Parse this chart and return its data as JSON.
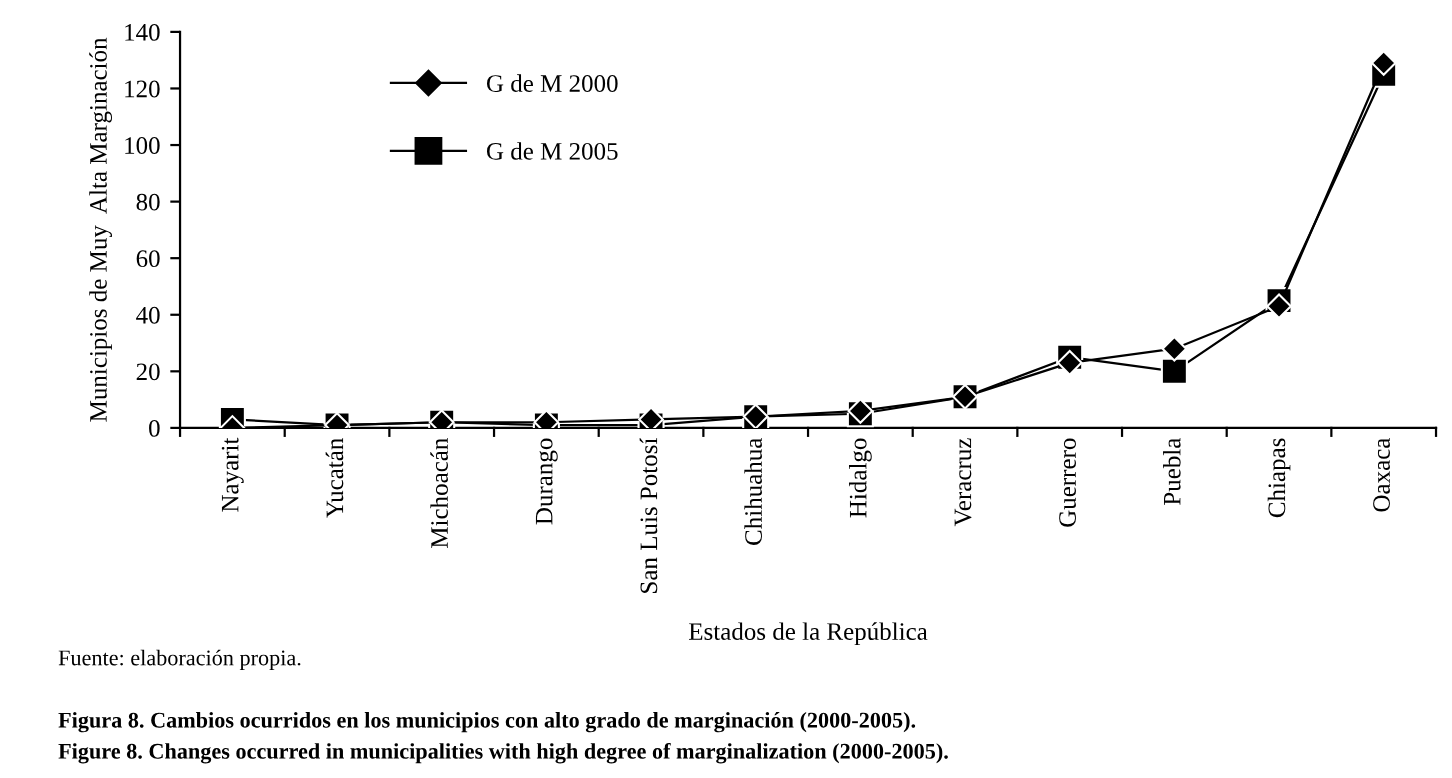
{
  "chart_data": {
    "type": "line",
    "xlabel": "Estados de la República",
    "ylabel": "Municipios de Muy  Alta Marginación",
    "categories": [
      "Nayarit",
      "Yucatán",
      "Michoacán",
      "Durango",
      "San Luis Potosí",
      "Chihuahua",
      "Hidalgo",
      "Veracruz",
      "Guerrero",
      "Puebla",
      "Chiapas",
      "Oaxaca"
    ],
    "series": [
      {
        "name": "G de M 2000",
        "color": "#000000",
        "marker": "diamond",
        "values": [
          0,
          1,
          2,
          2,
          3,
          4,
          6,
          11,
          23,
          28,
          43,
          129
        ]
      },
      {
        "name": "G de M 2005",
        "color": "#000000",
        "marker": "square",
        "values": [
          3,
          1,
          2,
          1,
          1,
          4,
          5,
          11,
          25,
          20,
          45,
          125
        ]
      }
    ],
    "ylim": [
      0,
      140
    ],
    "yticks": [
      0,
      20,
      40,
      60,
      80,
      100,
      120,
      140
    ],
    "grid": false,
    "legend": "top left",
    "line_style": "solid",
    "annotations": [
      "Fuente: elaboración propia.",
      "Figura 8. Cambios ocurridos en los municipios con alto grado de marginación (2000-2005).",
      "Figure 8. Changes occurred in municipalities with high degree of marginalization (2000-2005)."
    ]
  }
}
